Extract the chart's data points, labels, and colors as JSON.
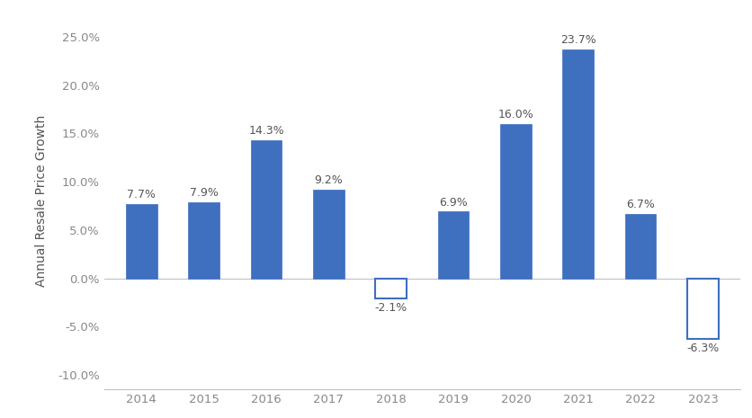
{
  "years": [
    "2014",
    "2015",
    "2016",
    "2017",
    "2018",
    "2019",
    "2020",
    "2021",
    "2022",
    "2023"
  ],
  "values": [
    7.7,
    7.9,
    14.3,
    9.2,
    -2.1,
    6.9,
    16.0,
    23.7,
    6.7,
    -6.3
  ],
  "bar_color_positive": "#3F6FBF",
  "bar_color_negative_fill": "white",
  "bar_color_negative_edge": "#3F6FBF",
  "ylabel": "Annual Resale Price Growth",
  "ylim_min": -11.5,
  "ylim_max": 27.5,
  "yticks": [
    -10.0,
    -5.0,
    0.0,
    5.0,
    10.0,
    15.0,
    20.0,
    25.0
  ],
  "ytick_labels": [
    "-10.0%",
    "-5.0%",
    "0.0%",
    "5.0%",
    "10.0%",
    "15.0%",
    "20.0%",
    "25.0%"
  ],
  "background_color": "#ffffff",
  "label_fontsize": 9.0,
  "ylabel_fontsize": 10,
  "tick_fontsize": 9.5,
  "label_color": "#555555",
  "tick_color": "#888888",
  "zero_line_color": "#c0c0c0",
  "bar_width": 0.5
}
